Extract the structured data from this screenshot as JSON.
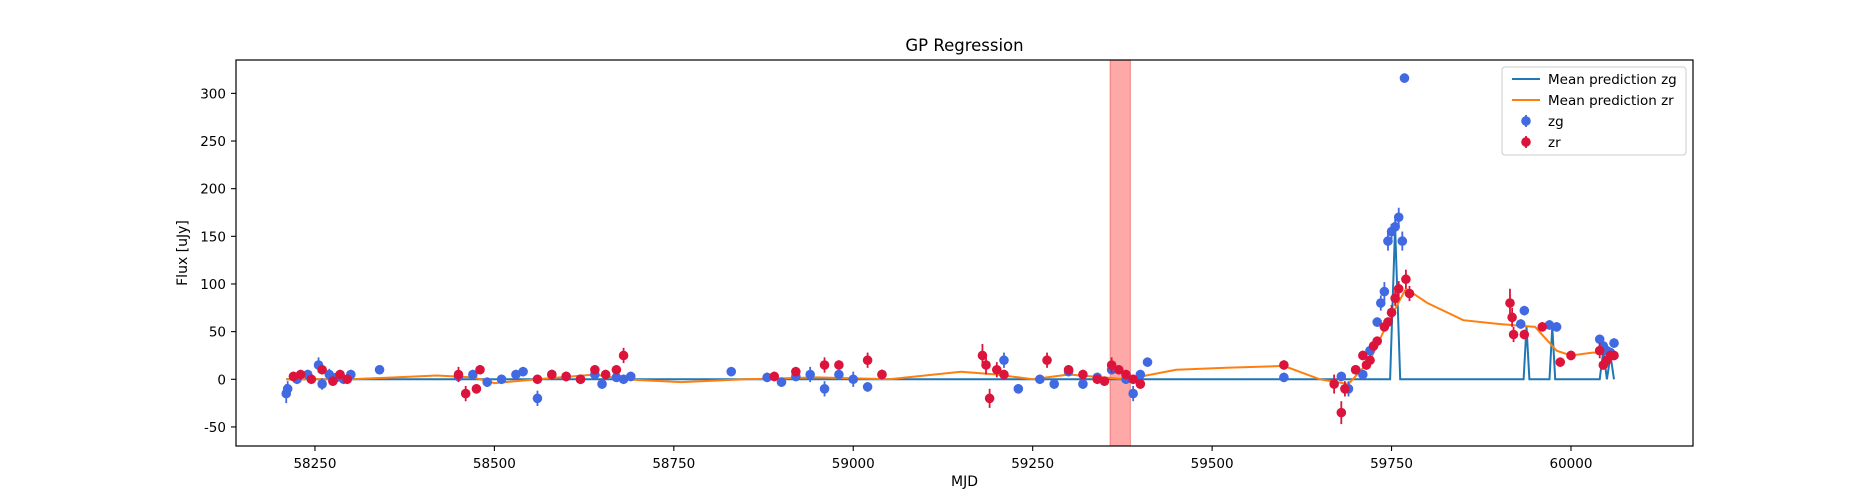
{
  "chart_data": {
    "type": "scatter",
    "title": "GP Regression",
    "xlabel": "MJD",
    "ylabel": "Flux [uJy]",
    "xlim": [
      58140,
      60170
    ],
    "ylim": [
      -70,
      335
    ],
    "xticks": [
      58250,
      58500,
      58750,
      59000,
      59250,
      59500,
      59750,
      60000
    ],
    "yticks": [
      -50,
      0,
      50,
      100,
      150,
      200,
      250,
      300
    ],
    "grid": false,
    "legend_position": "top-right",
    "legend": [
      "Mean prediction zg",
      "Mean prediction zr",
      "zg",
      "zr"
    ],
    "shaded_region": {
      "x0": 59358,
      "x1": 59386,
      "color": "#ffa8a8"
    },
    "colors": {
      "zg_line": "#1f77b4",
      "zr_line": "#ff7f0e",
      "zg_points": "#4169e1",
      "zr_points": "#dc143c"
    },
    "series": [
      {
        "name": "Mean prediction zg",
        "kind": "line",
        "x": [
          58210,
          59740,
          59748,
          59755,
          59762,
          59930,
          59934,
          59938,
          59942,
          59966,
          59970,
          59974,
          59978,
          60040,
          60045,
          60050,
          60055,
          60060
        ],
        "y": [
          0,
          0,
          0,
          160,
          0,
          0,
          0,
          55,
          0,
          0,
          0,
          55,
          0,
          0,
          30,
          0,
          25,
          0
        ]
      },
      {
        "name": "Mean prediction zr",
        "kind": "line",
        "x": [
          58210,
          58300,
          58420,
          58470,
          58500,
          58560,
          58640,
          58680,
          58760,
          58850,
          58950,
          59050,
          59150,
          59200,
          59250,
          59300,
          59380,
          59450,
          59520,
          59600,
          59650,
          59690,
          59720,
          59745,
          59770,
          59800,
          59850,
          59900,
          59950,
          59980,
          60000,
          60030,
          60060
        ],
        "y": [
          0,
          0,
          4,
          2,
          -4,
          0,
          5,
          0,
          -3,
          0,
          2,
          0,
          8,
          5,
          0,
          5,
          0,
          10,
          12,
          14,
          0,
          -5,
          20,
          60,
          95,
          80,
          62,
          58,
          55,
          30,
          25,
          28,
          28
        ]
      },
      {
        "name": "zg",
        "kind": "errorbar",
        "x": [
          58210,
          58212,
          58225,
          58240,
          58255,
          58260,
          58270,
          58280,
          58290,
          58300,
          58340,
          58450,
          58470,
          58490,
          58510,
          58530,
          58540,
          58560,
          58580,
          58600,
          58620,
          58640,
          58650,
          58670,
          58680,
          58690,
          58830,
          58880,
          58900,
          58920,
          58940,
          58960,
          58980,
          59000,
          59020,
          59040,
          59210,
          59230,
          59260,
          59280,
          59300,
          59320,
          59340,
          59360,
          59380,
          59390,
          59400,
          59410,
          59600,
          59680,
          59690,
          59700,
          59710,
          59720,
          59730,
          59735,
          59740,
          59745,
          59750,
          59755,
          59760,
          59765,
          59768,
          59930,
          59935,
          59970,
          59980,
          60040,
          60045,
          60050,
          60055,
          60060
        ],
        "y": [
          -15,
          -10,
          0,
          5,
          15,
          -5,
          5,
          2,
          0,
          5,
          10,
          3,
          5,
          -3,
          0,
          5,
          8,
          -20,
          5,
          3,
          0,
          5,
          -5,
          2,
          0,
          3,
          8,
          2,
          -3,
          3,
          5,
          -10,
          5,
          0,
          -8,
          5,
          20,
          -10,
          0,
          -5,
          8,
          -5,
          2,
          10,
          0,
          -15,
          5,
          18,
          2,
          3,
          -10,
          10,
          5,
          30,
          60,
          80,
          92,
          145,
          155,
          160,
          170,
          145,
          316,
          58,
          72,
          57,
          55,
          42,
          35,
          30,
          28,
          38
        ],
        "err": [
          10,
          8,
          5,
          5,
          8,
          6,
          6,
          5,
          5,
          5,
          5,
          5,
          5,
          5,
          5,
          5,
          5,
          8,
          5,
          5,
          5,
          5,
          5,
          5,
          5,
          5,
          5,
          5,
          5,
          5,
          8,
          8,
          5,
          8,
          5,
          5,
          8,
          5,
          5,
          5,
          5,
          5,
          5,
          5,
          5,
          8,
          5,
          5,
          5,
          5,
          8,
          5,
          5,
          5,
          5,
          8,
          10,
          10,
          8,
          8,
          10,
          10,
          5,
          5,
          5,
          5,
          5,
          5,
          5,
          5,
          5,
          5
        ]
      },
      {
        "name": "zr",
        "kind": "errorbar",
        "x": [
          58220,
          58230,
          58245,
          58260,
          58275,
          58285,
          58295,
          58450,
          58460,
          58475,
          58480,
          58560,
          58580,
          58600,
          58620,
          58640,
          58655,
          58670,
          58680,
          58890,
          58920,
          58960,
          58980,
          59020,
          59040,
          59180,
          59185,
          59190,
          59200,
          59210,
          59270,
          59300,
          59320,
          59340,
          59350,
          59360,
          59370,
          59380,
          59390,
          59400,
          59600,
          59670,
          59680,
          59685,
          59700,
          59710,
          59715,
          59720,
          59725,
          59730,
          59740,
          59745,
          59750,
          59755,
          59760,
          59770,
          59775,
          59915,
          59918,
          59920,
          59935,
          59960,
          59985,
          60000,
          60040,
          60045,
          60050,
          60055,
          60060
        ],
        "y": [
          3,
          5,
          0,
          10,
          -2,
          5,
          0,
          5,
          -15,
          -10,
          10,
          0,
          5,
          3,
          0,
          10,
          5,
          10,
          25,
          3,
          8,
          15,
          15,
          20,
          5,
          25,
          15,
          -20,
          10,
          5,
          20,
          10,
          5,
          0,
          -2,
          15,
          10,
          5,
          0,
          -5,
          15,
          -5,
          -35,
          -10,
          10,
          25,
          15,
          20,
          35,
          40,
          55,
          60,
          70,
          85,
          95,
          105,
          90,
          80,
          65,
          47,
          47,
          55,
          18,
          25,
          30,
          15,
          20,
          25,
          25
        ],
        "err": [
          5,
          5,
          5,
          5,
          5,
          5,
          5,
          8,
          8,
          5,
          5,
          5,
          5,
          5,
          5,
          5,
          5,
          5,
          8,
          5,
          5,
          8,
          5,
          8,
          5,
          12,
          10,
          10,
          8,
          5,
          8,
          5,
          5,
          5,
          5,
          8,
          5,
          5,
          5,
          5,
          5,
          10,
          12,
          8,
          5,
          5,
          5,
          5,
          5,
          5,
          5,
          5,
          8,
          8,
          8,
          10,
          8,
          15,
          10,
          8,
          5,
          5,
          5,
          5,
          8,
          5,
          5,
          5,
          5
        ]
      }
    ]
  }
}
